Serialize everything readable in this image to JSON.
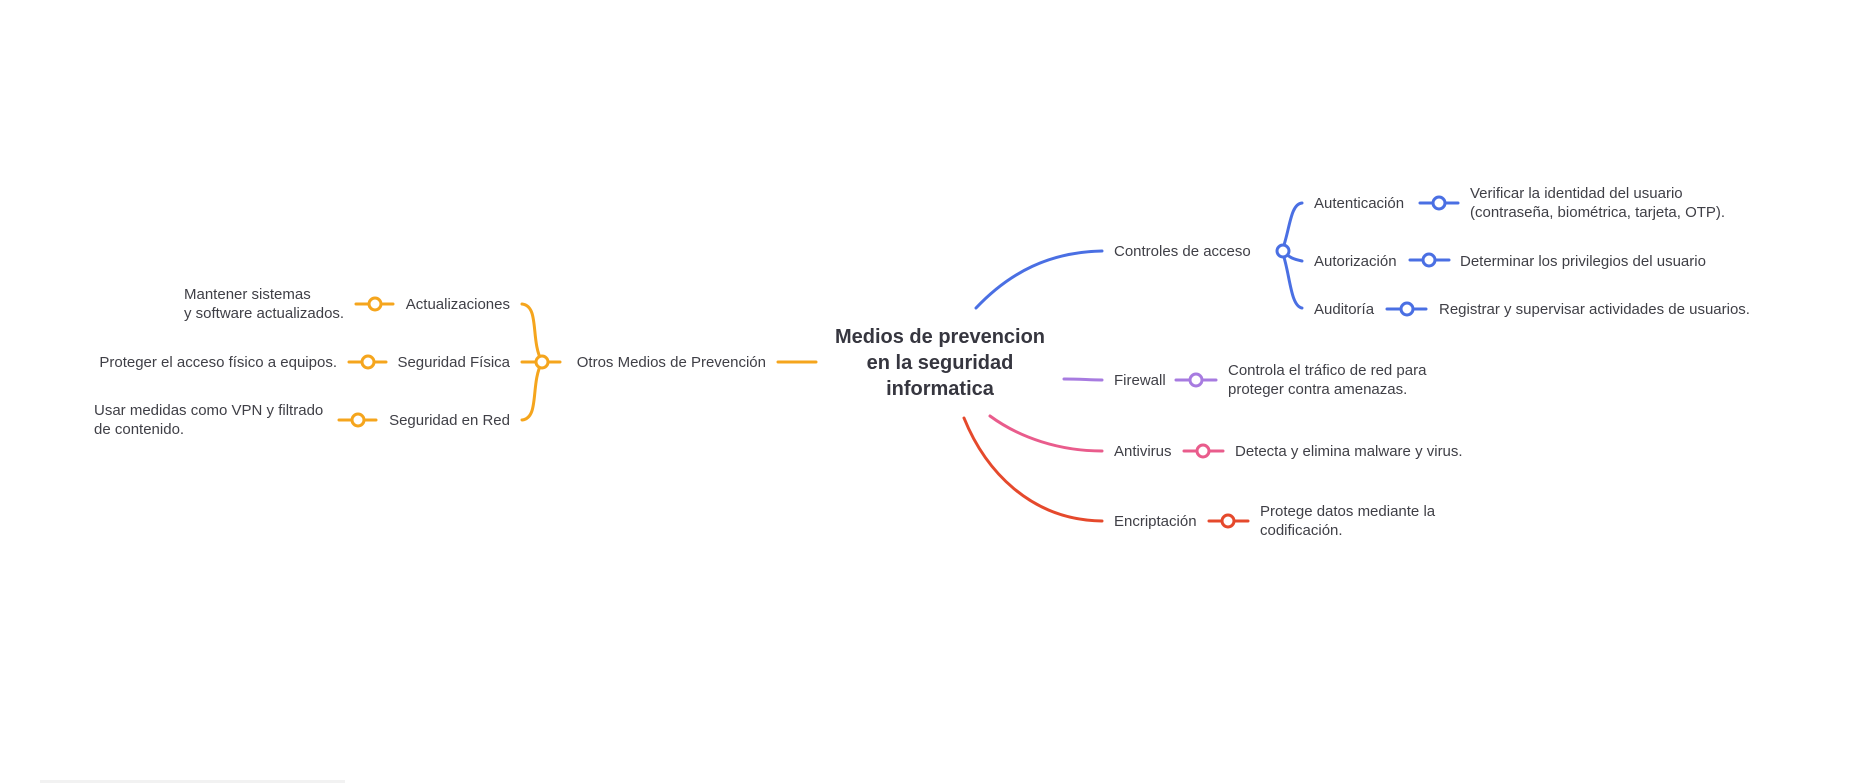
{
  "root": {
    "lines": [
      "Medios de prevencion",
      "en la seguridad",
      "informatica"
    ]
  },
  "colors": {
    "blue": "#4a6fe3",
    "purple": "#a77be0",
    "pink": "#e95c8c",
    "red": "#e5492c",
    "orange": "#f5a51d",
    "text": "#3f3f46"
  },
  "branches": {
    "controles": {
      "label": "Controles de acceso",
      "children": {
        "autenticacion": {
          "label": "Autenticación",
          "detail": [
            "Verificar la identidad del usuario",
            "(contraseña, biométrica, tarjeta, OTP)."
          ]
        },
        "autorizacion": {
          "label": "Autorización",
          "detail": [
            "Determinar los privilegios del usuario"
          ]
        },
        "auditoria": {
          "label": "Auditoría",
          "detail": [
            "Registrar y supervisar actividades de usuarios."
          ]
        }
      }
    },
    "firewall": {
      "label": "Firewall",
      "detail": [
        "Controla el tráfico de red para",
        "proteger contra amenazas."
      ]
    },
    "antivirus": {
      "label": "Antivirus",
      "detail": [
        "Detecta y elimina malware y virus."
      ]
    },
    "encriptacion": {
      "label": "Encriptación",
      "detail": [
        "Protege datos mediante la",
        "codificación."
      ]
    },
    "otros": {
      "label": "Otros Medios de Prevención",
      "children": {
        "actualizaciones": {
          "label": "Actualizaciones",
          "detail": [
            "Mantener sistemas",
            "y software actualizados."
          ]
        },
        "seguridad_fisica": {
          "label": "Seguridad Física",
          "detail": [
            "Proteger el acceso físico a equipos."
          ]
        },
        "seguridad_red": {
          "label": "Seguridad en Red",
          "detail": [
            "Usar medidas como VPN y filtrado",
            "de contenido."
          ]
        }
      }
    }
  }
}
